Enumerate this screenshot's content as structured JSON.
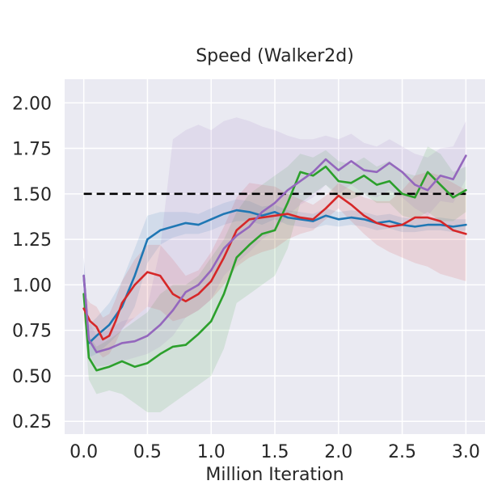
{
  "chart_data": {
    "type": "line",
    "title": "Speed (Walker2d)",
    "xlabel": "Million Iteration",
    "ylabel": "",
    "xlim": [
      -0.15,
      3.15
    ],
    "ylim": [
      0.18,
      2.13
    ],
    "x_ticks": [
      0.0,
      0.5,
      1.0,
      1.5,
      2.0,
      2.5,
      3.0
    ],
    "x_tick_labels": [
      "0.0",
      "0.5",
      "1.0",
      "1.5",
      "2.0",
      "2.5",
      "3.0"
    ],
    "y_ticks": [
      0.25,
      0.5,
      0.75,
      1.0,
      1.25,
      1.5,
      1.75,
      2.0
    ],
    "y_tick_labels": [
      "0.25",
      "0.50",
      "0.75",
      "1.00",
      "1.25",
      "1.50",
      "1.75",
      "2.00"
    ],
    "grid": true,
    "legend": "none",
    "colors": {
      "background": "#eaeaf2",
      "grid": "#ffffff",
      "target": "#000000"
    },
    "reference_line": {
      "y": 1.5,
      "x": [
        0.0,
        3.0
      ],
      "style": "dashed",
      "color": "#000000"
    },
    "series": [
      {
        "color": "#1f77b4",
        "x": [
          0.0,
          0.04,
          0.1,
          0.2,
          0.3,
          0.4,
          0.5,
          0.6,
          0.7,
          0.8,
          0.9,
          1.0,
          1.1,
          1.2,
          1.3,
          1.4,
          1.5,
          1.6,
          1.7,
          1.8,
          1.9,
          2.0,
          2.1,
          2.2,
          2.3,
          2.4,
          2.5,
          2.6,
          2.7,
          2.8,
          2.9,
          3.0
        ],
        "values": [
          1.05,
          0.68,
          0.72,
          0.78,
          0.88,
          1.05,
          1.25,
          1.3,
          1.32,
          1.34,
          1.33,
          1.36,
          1.39,
          1.41,
          1.4,
          1.38,
          1.4,
          1.37,
          1.36,
          1.35,
          1.38,
          1.36,
          1.37,
          1.36,
          1.34,
          1.35,
          1.33,
          1.32,
          1.33,
          1.33,
          1.32,
          1.33
        ],
        "lower": [
          0.92,
          0.6,
          0.62,
          0.68,
          0.75,
          0.88,
          1.12,
          1.22,
          1.26,
          1.28,
          1.28,
          1.3,
          1.33,
          1.35,
          1.35,
          1.33,
          1.36,
          1.33,
          1.32,
          1.31,
          1.33,
          1.32,
          1.33,
          1.32,
          1.3,
          1.31,
          1.29,
          1.29,
          1.3,
          1.3,
          1.29,
          1.3
        ],
        "upper": [
          1.15,
          0.78,
          0.82,
          0.9,
          1.02,
          1.2,
          1.38,
          1.4,
          1.4,
          1.4,
          1.39,
          1.42,
          1.45,
          1.47,
          1.46,
          1.43,
          1.44,
          1.41,
          1.4,
          1.39,
          1.42,
          1.4,
          1.41,
          1.4,
          1.38,
          1.39,
          1.37,
          1.36,
          1.37,
          1.37,
          1.36,
          1.36
        ]
      },
      {
        "color": "#2ca02c",
        "x": [
          0.0,
          0.04,
          0.1,
          0.2,
          0.3,
          0.4,
          0.5,
          0.6,
          0.7,
          0.8,
          0.9,
          1.0,
          1.1,
          1.2,
          1.3,
          1.4,
          1.5,
          1.6,
          1.7,
          1.8,
          1.9,
          2.0,
          2.1,
          2.2,
          2.3,
          2.4,
          2.5,
          2.6,
          2.7,
          2.8,
          2.9,
          3.0
        ],
        "values": [
          0.95,
          0.6,
          0.53,
          0.55,
          0.58,
          0.55,
          0.57,
          0.62,
          0.66,
          0.67,
          0.73,
          0.8,
          0.95,
          1.15,
          1.22,
          1.28,
          1.3,
          1.45,
          1.62,
          1.6,
          1.65,
          1.57,
          1.56,
          1.6,
          1.55,
          1.57,
          1.5,
          1.48,
          1.62,
          1.55,
          1.48,
          1.52
        ],
        "lower": [
          0.85,
          0.48,
          0.4,
          0.42,
          0.4,
          0.35,
          0.3,
          0.3,
          0.35,
          0.4,
          0.45,
          0.5,
          0.65,
          0.9,
          0.95,
          1.0,
          1.05,
          1.2,
          1.45,
          1.5,
          1.55,
          1.48,
          1.47,
          1.5,
          1.45,
          1.45,
          1.38,
          1.36,
          1.4,
          1.35,
          1.35,
          1.4
        ],
        "upper": [
          1.0,
          0.72,
          0.66,
          0.7,
          0.75,
          0.8,
          0.85,
          0.95,
          1.0,
          1.0,
          1.05,
          1.15,
          1.25,
          1.4,
          1.5,
          1.55,
          1.6,
          1.65,
          1.72,
          1.7,
          1.74,
          1.68,
          1.66,
          1.7,
          1.65,
          1.68,
          1.62,
          1.6,
          1.76,
          1.72,
          1.62,
          1.65
        ]
      },
      {
        "color": "#d62728",
        "x": [
          0.0,
          0.05,
          0.1,
          0.15,
          0.2,
          0.25,
          0.3,
          0.4,
          0.5,
          0.6,
          0.7,
          0.8,
          0.9,
          1.0,
          1.1,
          1.2,
          1.3,
          1.4,
          1.5,
          1.6,
          1.7,
          1.8,
          1.9,
          2.0,
          2.1,
          2.2,
          2.3,
          2.4,
          2.5,
          2.6,
          2.7,
          2.8,
          2.9,
          3.0
        ],
        "values": [
          0.87,
          0.8,
          0.77,
          0.7,
          0.72,
          0.8,
          0.9,
          1.0,
          1.07,
          1.05,
          0.95,
          0.91,
          0.95,
          1.02,
          1.15,
          1.3,
          1.36,
          1.37,
          1.38,
          1.39,
          1.37,
          1.36,
          1.42,
          1.49,
          1.44,
          1.38,
          1.34,
          1.32,
          1.33,
          1.37,
          1.37,
          1.35,
          1.3,
          1.28
        ],
        "lower": [
          0.8,
          0.7,
          0.64,
          0.6,
          0.62,
          0.68,
          0.76,
          0.82,
          0.88,
          0.86,
          0.8,
          0.82,
          0.86,
          0.92,
          1.0,
          1.1,
          1.15,
          1.18,
          1.2,
          1.25,
          1.28,
          1.3,
          1.36,
          1.42,
          1.35,
          1.28,
          1.22,
          1.18,
          1.15,
          1.12,
          1.1,
          1.06,
          1.04,
          1.02
        ],
        "upper": [
          0.95,
          0.9,
          0.88,
          0.82,
          0.84,
          0.92,
          1.02,
          1.14,
          1.22,
          1.22,
          1.14,
          1.05,
          1.08,
          1.18,
          1.32,
          1.48,
          1.56,
          1.55,
          1.54,
          1.5,
          1.47,
          1.44,
          1.49,
          1.56,
          1.52,
          1.48,
          1.46,
          1.46,
          1.52,
          1.6,
          1.62,
          1.6,
          1.56,
          1.52
        ]
      },
      {
        "color": "#9467bd",
        "x": [
          0.0,
          0.04,
          0.1,
          0.2,
          0.3,
          0.4,
          0.5,
          0.6,
          0.7,
          0.8,
          0.9,
          1.0,
          1.1,
          1.2,
          1.3,
          1.4,
          1.5,
          1.6,
          1.7,
          1.8,
          1.9,
          2.0,
          2.1,
          2.2,
          2.3,
          2.4,
          2.5,
          2.6,
          2.7,
          2.8,
          2.9,
          3.0
        ],
        "values": [
          1.05,
          0.7,
          0.63,
          0.65,
          0.68,
          0.69,
          0.72,
          0.78,
          0.86,
          0.96,
          1.0,
          1.08,
          1.2,
          1.27,
          1.32,
          1.4,
          1.45,
          1.52,
          1.57,
          1.62,
          1.69,
          1.63,
          1.68,
          1.63,
          1.62,
          1.67,
          1.62,
          1.55,
          1.52,
          1.6,
          1.58,
          1.71
        ],
        "lower": [
          0.95,
          0.62,
          0.55,
          0.56,
          0.58,
          0.6,
          0.62,
          0.66,
          0.72,
          0.82,
          0.86,
          0.92,
          1.05,
          1.12,
          1.18,
          1.25,
          1.3,
          1.38,
          1.44,
          1.48,
          1.55,
          1.5,
          1.55,
          1.5,
          1.48,
          1.52,
          1.48,
          1.42,
          1.38,
          1.46,
          1.45,
          1.58
        ],
        "upper": [
          1.15,
          0.8,
          0.72,
          0.76,
          0.8,
          0.82,
          0.88,
          1.2,
          1.8,
          1.85,
          1.88,
          1.85,
          1.9,
          1.92,
          1.9,
          1.87,
          1.85,
          1.82,
          1.8,
          1.8,
          1.82,
          1.8,
          1.83,
          1.78,
          1.76,
          1.8,
          1.76,
          1.72,
          1.7,
          1.75,
          1.76,
          1.9
        ]
      }
    ]
  }
}
